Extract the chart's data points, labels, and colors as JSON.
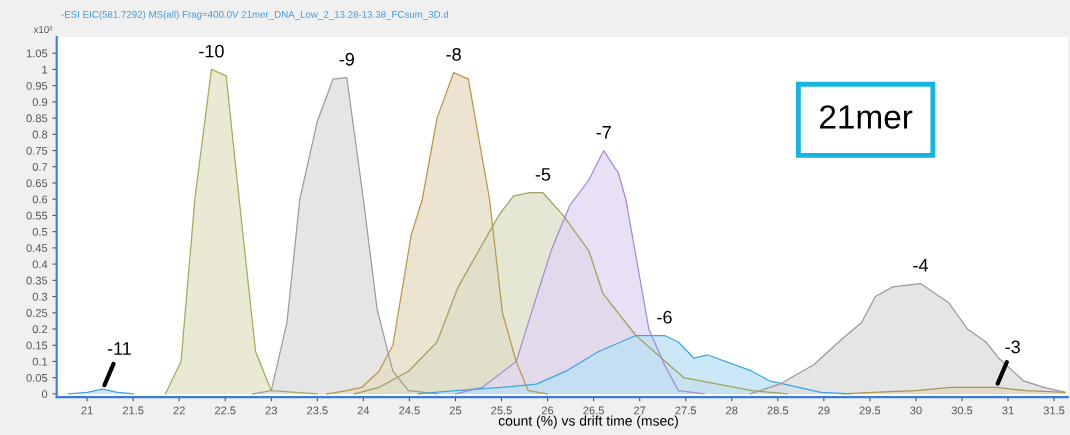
{
  "chart_data": {
    "type": "area",
    "title": "-ESI EIC(581.7292) MS(all) Frag=400.0V 21mer_DNA_Low_2_13.28-13.38_FCsum_3D.d",
    "xlabel": "count (%) vs drift time (msec)",
    "ylabel": "x10²",
    "xlim": [
      20.67,
      31.65
    ],
    "ylim": [
      -0.01,
      1.1
    ],
    "xticks": [
      21,
      21.5,
      22,
      22.5,
      23,
      23.5,
      24,
      24.5,
      25,
      25.5,
      26,
      26.5,
      27,
      27.5,
      28,
      28.5,
      29,
      29.5,
      30,
      30.5,
      31,
      31.5
    ],
    "yticks": [
      0,
      0.05,
      0.1,
      0.15,
      0.2,
      0.25,
      0.3,
      0.35,
      0.4,
      0.45,
      0.5,
      0.55,
      0.6,
      0.65,
      0.7,
      0.75,
      0.8,
      0.85,
      0.9,
      0.95,
      1,
      1.05
    ],
    "grid": false,
    "series": [
      {
        "name": "-11",
        "color": "#3aa6e0",
        "x": [
          20.8,
          21.0,
          21.17,
          21.33,
          21.5
        ],
        "values": [
          0,
          0.005,
          0.015,
          0.005,
          0
        ]
      },
      {
        "name": "-10",
        "color": "#a8a85a",
        "x": [
          21.85,
          22.02,
          22.17,
          22.35,
          22.51,
          22.67,
          22.83,
          23.0,
          23.5
        ],
        "values": [
          0,
          0.1,
          0.6,
          1.0,
          0.98,
          0.55,
          0.13,
          0.01,
          0
        ]
      },
      {
        "name": "-9",
        "color": "#9a9ca2",
        "x": [
          22.8,
          23.0,
          23.17,
          23.31,
          23.5,
          23.67,
          23.82,
          24.0,
          24.15,
          24.32,
          24.49,
          24.8
        ],
        "values": [
          0,
          0.01,
          0.22,
          0.6,
          0.84,
          0.97,
          0.975,
          0.6,
          0.26,
          0.07,
          0.01,
          0
        ]
      },
      {
        "name": "-8",
        "color": "#b8974a",
        "x": [
          23.6,
          23.82,
          23.98,
          24.17,
          24.32,
          24.52,
          24.64,
          24.8,
          24.98,
          25.14,
          25.37,
          25.51,
          25.66,
          25.79,
          26.0
        ],
        "values": [
          0,
          0.01,
          0.02,
          0.07,
          0.15,
          0.49,
          0.6,
          0.85,
          0.99,
          0.97,
          0.6,
          0.25,
          0.1,
          0.01,
          0
        ]
      },
      {
        "name": "-5",
        "color": "#a0a060",
        "x": [
          23.9,
          24.17,
          24.49,
          24.8,
          25.03,
          25.29,
          25.47,
          25.63,
          25.81,
          25.95,
          26.17,
          26.45,
          26.6,
          26.96,
          27.48,
          28.22,
          28.6
        ],
        "values": [
          0,
          0.02,
          0.07,
          0.16,
          0.33,
          0.46,
          0.55,
          0.61,
          0.62,
          0.62,
          0.55,
          0.44,
          0.31,
          0.18,
          0.05,
          0.01,
          0
        ]
      },
      {
        "name": "-7",
        "color": "#a58ad8",
        "x": [
          25.0,
          25.29,
          25.66,
          25.88,
          26.05,
          26.24,
          26.45,
          26.61,
          26.77,
          26.85,
          27.1,
          27.27,
          27.42,
          27.7
        ],
        "values": [
          0,
          0.02,
          0.1,
          0.3,
          0.45,
          0.58,
          0.66,
          0.75,
          0.68,
          0.6,
          0.2,
          0.09,
          0.01,
          0
        ]
      },
      {
        "name": "-6",
        "color": "#3aa6e0",
        "x": [
          24.6,
          25.0,
          25.5,
          25.88,
          26.2,
          26.55,
          26.96,
          27.27,
          27.42,
          27.59,
          27.74,
          28.22,
          28.41,
          28.97,
          29.3
        ],
        "values": [
          0,
          0.01,
          0.02,
          0.03,
          0.07,
          0.13,
          0.18,
          0.18,
          0.16,
          0.11,
          0.12,
          0.07,
          0.04,
          0.005,
          0
        ]
      },
      {
        "name": "-4",
        "color": "#9a9a9a",
        "x": [
          28.2,
          28.52,
          28.89,
          29.2,
          29.41,
          29.56,
          29.75,
          30.05,
          30.36,
          30.56,
          30.76,
          30.9,
          31.17,
          31.39,
          31.62
        ],
        "values": [
          0,
          0.03,
          0.09,
          0.17,
          0.22,
          0.3,
          0.33,
          0.34,
          0.28,
          0.2,
          0.16,
          0.11,
          0.04,
          0.02,
          0.005
        ]
      },
      {
        "name": "-3",
        "color": "#b09050",
        "x": [
          29.2,
          29.53,
          30.0,
          30.38,
          30.87,
          31.2,
          31.62
        ],
        "values": [
          0,
          0.005,
          0.01,
          0.02,
          0.02,
          0.01,
          0.005
        ]
      }
    ],
    "annotations": [
      "21mer"
    ]
  }
}
